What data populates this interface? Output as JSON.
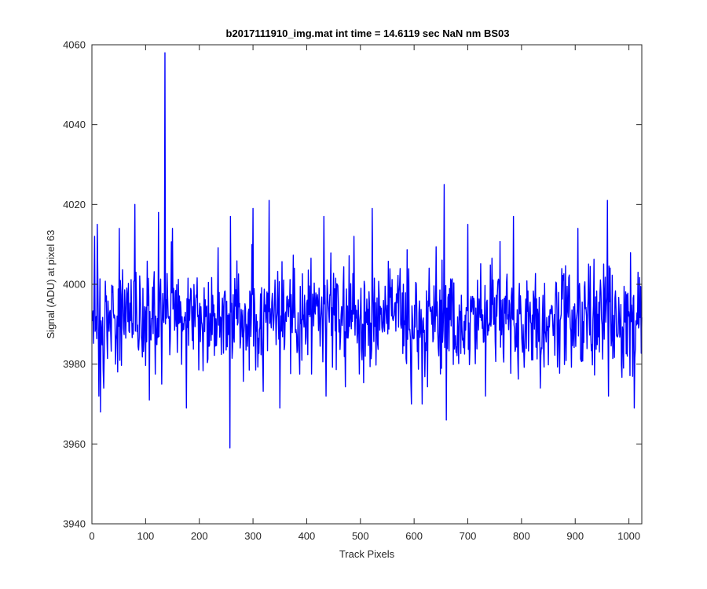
{
  "chart_data": {
    "type": "line",
    "title": "b2017111910_img.mat int time = 14.6119 sec  NaN nm BS03",
    "xlabel": "Track Pixels",
    "ylabel": "Signal (ADU) at pixel 63",
    "xlim": [
      0,
      1024
    ],
    "ylim": [
      3940,
      4060
    ],
    "xticks": [
      0,
      100,
      200,
      300,
      400,
      500,
      600,
      700,
      800,
      900,
      1000
    ],
    "xtick_labels": [
      "0",
      "100",
      "200",
      "300",
      "400",
      "500",
      "600",
      "700",
      "800",
      "900",
      "1000"
    ],
    "yticks": [
      3940,
      3960,
      3980,
      4000,
      4020,
      4040,
      4060
    ],
    "ytick_labels": [
      "3940",
      "3960",
      "3980",
      "4000",
      "4020",
      "4040",
      "4060"
    ],
    "grid": false,
    "series": [
      {
        "color": "#0000ff",
        "x_start": 1,
        "x_step": 1,
        "baseline": 3992,
        "noise_sd": 6.5,
        "points": 1024,
        "extremes": [
          {
            "x": 10,
            "y": 4015
          },
          {
            "x": 13,
            "y": 3972
          },
          {
            "x": 16,
            "y": 3968
          },
          {
            "x": 22,
            "y": 3974
          },
          {
            "x": 51,
            "y": 4014
          },
          {
            "x": 80,
            "y": 4020
          },
          {
            "x": 107,
            "y": 3971
          },
          {
            "x": 124,
            "y": 4018
          },
          {
            "x": 130,
            "y": 3975
          },
          {
            "x": 136,
            "y": 4058
          },
          {
            "x": 150,
            "y": 4014
          },
          {
            "x": 176,
            "y": 3969
          },
          {
            "x": 257,
            "y": 3959
          },
          {
            "x": 258,
            "y": 4017
          },
          {
            "x": 300,
            "y": 4019
          },
          {
            "x": 330,
            "y": 4021
          },
          {
            "x": 350,
            "y": 3969
          },
          {
            "x": 432,
            "y": 4017
          },
          {
            "x": 436,
            "y": 3972
          },
          {
            "x": 522,
            "y": 4019
          },
          {
            "x": 595,
            "y": 3970
          },
          {
            "x": 615,
            "y": 3970
          },
          {
            "x": 656,
            "y": 4025
          },
          {
            "x": 660,
            "y": 3966
          },
          {
            "x": 700,
            "y": 4015
          },
          {
            "x": 733,
            "y": 3972
          },
          {
            "x": 785,
            "y": 4017
          },
          {
            "x": 835,
            "y": 3974
          },
          {
            "x": 905,
            "y": 4014
          },
          {
            "x": 960,
            "y": 4021
          },
          {
            "x": 962,
            "y": 3972
          },
          {
            "x": 1010,
            "y": 3969
          },
          {
            "x": 1017,
            "y": 4003
          }
        ]
      }
    ]
  }
}
